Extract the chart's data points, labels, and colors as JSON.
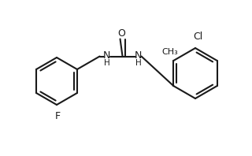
{
  "bg_color": "#ffffff",
  "line_color": "#1a1a1a",
  "lw": 1.5,
  "fs": 9.0,
  "figsize": [
    3.2,
    1.98
  ],
  "dpi": 100,
  "xlim": [
    0,
    320
  ],
  "ylim": [
    0,
    198
  ]
}
